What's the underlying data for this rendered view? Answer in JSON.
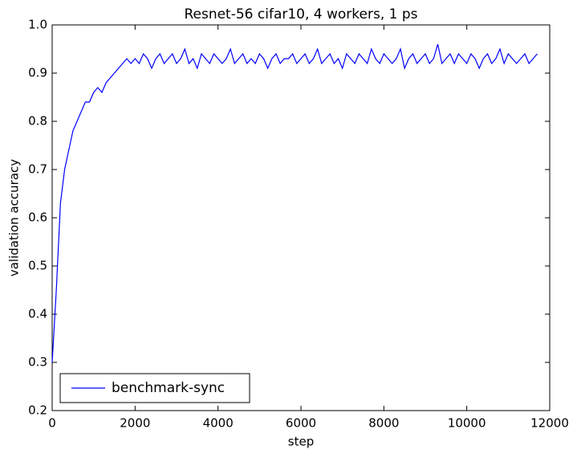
{
  "chart_data": {
    "type": "line",
    "title": "Resnet-56 cifar10, 4 workers, 1 ps",
    "x_label": "step",
    "y_label": "validation accuracy",
    "x": [
      0,
      100,
      200,
      300,
      400,
      500,
      600,
      700,
      800,
      900,
      1000,
      1100,
      1200,
      1300,
      1400,
      1500,
      1600,
      1700,
      1800,
      1900,
      2000,
      2100,
      2200,
      2300,
      2400,
      2500,
      2600,
      2700,
      2800,
      2900,
      3000,
      3100,
      3200,
      3300,
      3400,
      3500,
      3600,
      3700,
      3800,
      3900,
      4000,
      4100,
      4200,
      4300,
      4400,
      4500,
      4600,
      4700,
      4800,
      4900,
      5000,
      5100,
      5200,
      5300,
      5400,
      5500,
      5600,
      5700,
      5800,
      5900,
      6000,
      6100,
      6200,
      6300,
      6400,
      6500,
      6600,
      6700,
      6800,
      6900,
      7000,
      7100,
      7200,
      7300,
      7400,
      7500,
      7600,
      7700,
      7800,
      7900,
      8000,
      8100,
      8200,
      8300,
      8400,
      8500,
      8600,
      8700,
      8800,
      8900,
      9000,
      9100,
      9200,
      9300,
      9400,
      9500,
      9600,
      9700,
      9800,
      9900,
      10000,
      10100,
      10200,
      10300,
      10400,
      10500,
      10600,
      10700,
      10800,
      10900,
      11000,
      11100,
      11200,
      11300,
      11400,
      11500,
      11600,
      11700
    ],
    "series": [
      {
        "name": "benchmark-sync",
        "color": "#0000ff",
        "values": [
          0.3,
          0.45,
          0.63,
          0.7,
          0.74,
          0.78,
          0.8,
          0.82,
          0.84,
          0.84,
          0.86,
          0.87,
          0.86,
          0.88,
          0.89,
          0.9,
          0.91,
          0.92,
          0.93,
          0.92,
          0.93,
          0.92,
          0.94,
          0.93,
          0.91,
          0.93,
          0.94,
          0.92,
          0.93,
          0.94,
          0.92,
          0.93,
          0.95,
          0.92,
          0.93,
          0.91,
          0.94,
          0.93,
          0.92,
          0.94,
          0.93,
          0.92,
          0.93,
          0.95,
          0.92,
          0.93,
          0.94,
          0.92,
          0.93,
          0.92,
          0.94,
          0.93,
          0.91,
          0.93,
          0.94,
          0.92,
          0.93,
          0.93,
          0.94,
          0.92,
          0.93,
          0.94,
          0.92,
          0.93,
          0.95,
          0.92,
          0.93,
          0.94,
          0.92,
          0.93,
          0.91,
          0.94,
          0.93,
          0.92,
          0.94,
          0.93,
          0.92,
          0.95,
          0.93,
          0.92,
          0.94,
          0.93,
          0.92,
          0.93,
          0.95,
          0.91,
          0.93,
          0.94,
          0.92,
          0.93,
          0.94,
          0.92,
          0.93,
          0.96,
          0.92,
          0.93,
          0.94,
          0.92,
          0.94,
          0.93,
          0.92,
          0.94,
          0.93,
          0.91,
          0.93,
          0.94,
          0.92,
          0.93,
          0.95,
          0.92,
          0.94,
          0.93,
          0.92,
          0.93,
          0.94,
          0.92,
          0.93,
          0.94
        ]
      }
    ],
    "xlim": [
      0,
      12000
    ],
    "xticks": [
      0,
      2000,
      4000,
      6000,
      8000,
      10000,
      12000
    ],
    "ylim": [
      0.2,
      1.0
    ],
    "yticks": [
      0.2,
      0.3,
      0.4,
      0.5,
      0.6,
      0.7,
      0.8,
      0.9,
      {
        "value": 1,
        "label": "1.0"
      }
    ],
    "legend": "lower left"
  }
}
